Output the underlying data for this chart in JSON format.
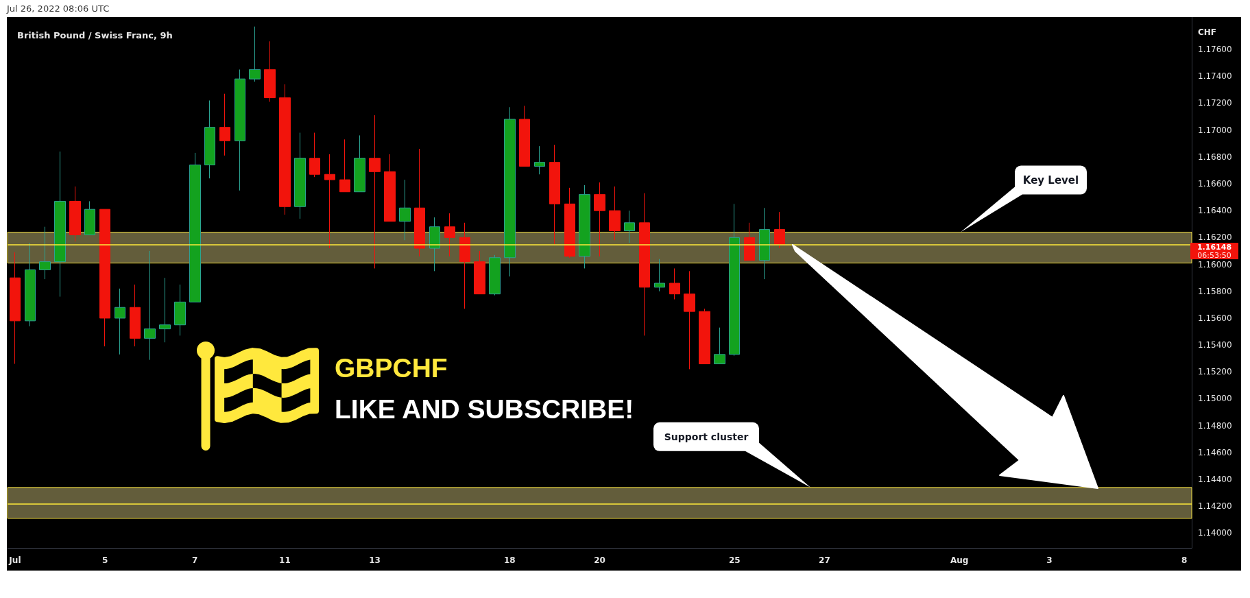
{
  "chart_data": {
    "type": "candlestick",
    "title": "British Pound / Swiss Franc, 9h",
    "ylabel": "CHF",
    "categories": [
      "Jul",
      null,
      null,
      null,
      null,
      null,
      "5",
      null,
      null,
      null,
      null,
      null,
      "7",
      null,
      null,
      null,
      null,
      null,
      "11",
      null,
      null,
      null,
      null,
      null,
      "13",
      null,
      null,
      null,
      null,
      null,
      null,
      null,
      null,
      "18",
      null,
      null,
      null,
      null,
      null,
      "20",
      null,
      null,
      null,
      null,
      null,
      null,
      null,
      null,
      "25",
      null,
      null,
      null,
      null,
      null,
      "27",
      null,
      null,
      null,
      null,
      null,
      null,
      null,
      null,
      "Aug",
      null,
      null,
      null,
      null,
      null,
      "3",
      null,
      null,
      null,
      null,
      null,
      null,
      null,
      null,
      "8"
    ],
    "ohlc": [
      [
        1.159,
        1.1609,
        1.1526,
        1.1558
      ],
      [
        1.1558,
        1.1616,
        1.1554,
        1.1596
      ],
      [
        1.1596,
        1.1628,
        1.1589,
        1.1602
      ],
      [
        1.1602,
        1.1684,
        1.1576,
        1.1647
      ],
      [
        1.1647,
        1.1658,
        1.1617,
        1.1622
      ],
      [
        1.1622,
        1.1647,
        1.1622,
        1.1641
      ],
      [
        1.1641,
        1.1641,
        1.1539,
        1.156
      ],
      [
        1.156,
        1.1582,
        1.1533,
        1.1568
      ],
      [
        1.1568,
        1.1585,
        1.1539,
        1.1545
      ],
      [
        1.1545,
        1.161,
        1.1529,
        1.1552
      ],
      [
        1.1552,
        1.159,
        1.1542,
        1.1555
      ],
      [
        1.1555,
        1.1585,
        1.1547,
        1.1572
      ],
      [
        1.1572,
        1.1683,
        1.1572,
        1.1674
      ],
      [
        1.1674,
        1.1722,
        1.1664,
        1.1702
      ],
      [
        1.1702,
        1.1727,
        1.1681,
        1.1692
      ],
      [
        1.1692,
        1.1745,
        1.1655,
        1.1738
      ],
      [
        1.1738,
        1.1777,
        1.1736,
        1.1745
      ],
      [
        1.1745,
        1.1766,
        1.1721,
        1.1724
      ],
      [
        1.1724,
        1.1734,
        1.1637,
        1.1643
      ],
      [
        1.1643,
        1.1698,
        1.1634,
        1.1679
      ],
      [
        1.1679,
        1.1698,
        1.1665,
        1.1667
      ],
      [
        1.1667,
        1.1682,
        1.1612,
        1.1663
      ],
      [
        1.1663,
        1.1693,
        1.1654,
        1.1654
      ],
      [
        1.1654,
        1.1696,
        1.1654,
        1.1679
      ],
      [
        1.1679,
        1.1711,
        1.1597,
        1.1669
      ],
      [
        1.1669,
        1.1682,
        1.1632,
        1.1632
      ],
      [
        1.1632,
        1.1663,
        1.1618,
        1.1642
      ],
      [
        1.1642,
        1.1686,
        1.1606,
        1.1612
      ],
      [
        1.1612,
        1.1635,
        1.1595,
        1.1628
      ],
      [
        1.1628,
        1.1638,
        1.1606,
        1.162
      ],
      [
        1.162,
        1.1631,
        1.1567,
        1.1602
      ],
      [
        1.1602,
        1.161,
        1.1578,
        1.1578
      ],
      [
        1.1578,
        1.1607,
        1.1577,
        1.1605
      ],
      [
        1.1605,
        1.1717,
        1.1591,
        1.1708
      ],
      [
        1.1708,
        1.1718,
        1.1673,
        1.1673
      ],
      [
        1.1673,
        1.1688,
        1.1667,
        1.1676
      ],
      [
        1.1676,
        1.1689,
        1.1615,
        1.1645
      ],
      [
        1.1645,
        1.1657,
        1.1605,
        1.1606
      ],
      [
        1.1606,
        1.1659,
        1.1597,
        1.1652
      ],
      [
        1.1652,
        1.1661,
        1.1606,
        1.164
      ],
      [
        1.164,
        1.1658,
        1.1618,
        1.1625
      ],
      [
        1.1625,
        1.164,
        1.1616,
        1.1631
      ],
      [
        1.1631,
        1.1653,
        1.1547,
        1.1583
      ],
      [
        1.1583,
        1.1604,
        1.158,
        1.1586
      ],
      [
        1.1586,
        1.1597,
        1.1574,
        1.1578
      ],
      [
        1.1578,
        1.1595,
        1.1522,
        1.1565
      ],
      [
        1.1565,
        1.1567,
        1.1526,
        1.1526
      ],
      [
        1.1526,
        1.1553,
        1.1526,
        1.1533
      ],
      [
        1.1533,
        1.1645,
        1.1532,
        1.162
      ],
      [
        1.162,
        1.1631,
        1.1603,
        1.1603
      ],
      [
        1.1603,
        1.1642,
        1.1589,
        1.1626
      ],
      [
        1.1626,
        1.1639,
        1.1612,
        1.16148
      ],
      null,
      null,
      null,
      null,
      null,
      null,
      null,
      null,
      null,
      null,
      null,
      null,
      null,
      null,
      null,
      null,
      null,
      null,
      null,
      null,
      null,
      null,
      null,
      null,
      null,
      null,
      null
    ],
    "ylim": [
      1.1389,
      1.1784
    ],
    "yticks": [
      {
        "value": 1.14,
        "label": "1.14000"
      },
      {
        "value": 1.142,
        "label": "1.14200"
      },
      {
        "value": 1.144,
        "label": "1.14400"
      },
      {
        "value": 1.146,
        "label": "1.14600"
      },
      {
        "value": 1.148,
        "label": "1.14800"
      },
      {
        "value": 1.15,
        "label": "1.15000"
      },
      {
        "value": 1.152,
        "label": "1.15200"
      },
      {
        "value": 1.154,
        "label": "1.15400"
      },
      {
        "value": 1.156,
        "label": "1.15600"
      },
      {
        "value": 1.158,
        "label": "1.15800"
      },
      {
        "value": 1.16,
        "label": "1.16000"
      },
      {
        "value": 1.162,
        "label": "1.16200"
      },
      {
        "value": 1.164,
        "label": "1.16400"
      },
      {
        "value": 1.166,
        "label": "1.16600"
      },
      {
        "value": 1.168,
        "label": "1.16800"
      },
      {
        "value": 1.17,
        "label": "1.17000"
      },
      {
        "value": 1.172,
        "label": "1.17200"
      },
      {
        "value": 1.174,
        "label": "1.17400"
      },
      {
        "value": 1.176,
        "label": "1.17600"
      }
    ],
    "bands": [
      {
        "axis": "y",
        "from": 1.1601,
        "to": 1.1624,
        "color": "#635d3b"
      },
      {
        "axis": "y",
        "from": 1.1411,
        "to": 1.1434,
        "color": "#635d3b"
      }
    ],
    "ref_lines": [
      {
        "axis": "y",
        "value": 1.16148,
        "label": "1.16148",
        "color": "#ffeb3b"
      },
      {
        "axis": "y",
        "value": 1.1422,
        "color": "#ffeb3b"
      }
    ],
    "annotations": [
      "Jul 26, 2022 08:06 UTC",
      "GBPCHF",
      "LIKE AND SUBSCRIBE!",
      "Key Level",
      "Support cluster",
      "06:53:50"
    ]
  }
}
